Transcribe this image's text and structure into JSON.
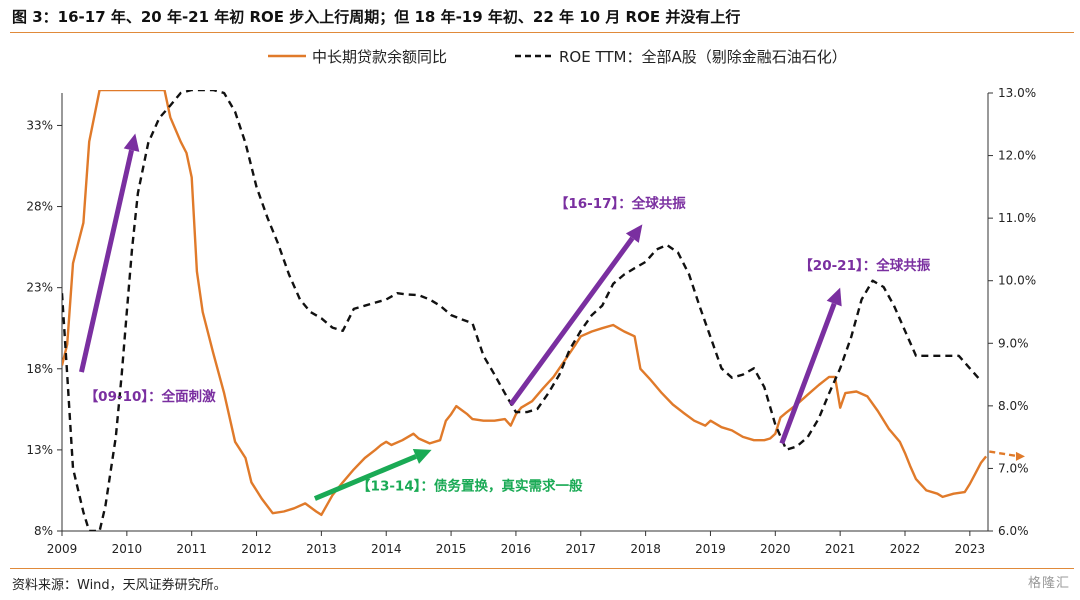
{
  "title": "图 3：16-17 年、20 年-21 年初  ROE 步入上行周期；但 18 年-19 年初、22 年 10 月 ROE 并没有上行",
  "source": "资料来源：Wind，天风证券研究所。",
  "watermark": "格隆汇",
  "chart_data": {
    "type": "line",
    "x_ticks": [
      "2009",
      "2010",
      "2011",
      "2012",
      "2013",
      "2014",
      "2015",
      "2016",
      "2017",
      "2018",
      "2019",
      "2020",
      "2021",
      "2022",
      "2023"
    ],
    "xlim": [
      2009.0,
      2023.28
    ],
    "y_left": {
      "ticks": [
        "8%",
        "13%",
        "18%",
        "23%",
        "28%",
        "33%"
      ],
      "ylim": [
        8,
        35
      ]
    },
    "y_right": {
      "ticks": [
        "6.0%",
        "7.0%",
        "8.0%",
        "9.0%",
        "10.0%",
        "11.0%",
        "12.0%",
        "13.0%"
      ],
      "ylim": [
        6.0,
        13.0
      ]
    },
    "series": [
      {
        "name": "中长期贷款余额同比",
        "axis": "left",
        "color": "#e07a2a",
        "style": "solid",
        "points": [
          [
            2009.0,
            18.2
          ],
          [
            2009.08,
            19.5
          ],
          [
            2009.17,
            24.5
          ],
          [
            2009.33,
            27.0
          ],
          [
            2009.42,
            32.0
          ],
          [
            2009.58,
            36.0
          ],
          [
            2010.58,
            36.0
          ],
          [
            2010.67,
            33.5
          ],
          [
            2010.83,
            32.0
          ],
          [
            2010.92,
            31.3
          ],
          [
            2011.0,
            29.8
          ],
          [
            2011.08,
            24.0
          ],
          [
            2011.17,
            21.5
          ],
          [
            2011.33,
            19.0
          ],
          [
            2011.5,
            16.5
          ],
          [
            2011.67,
            13.5
          ],
          [
            2011.83,
            12.5
          ],
          [
            2011.92,
            11.0
          ],
          [
            2012.08,
            10.0
          ],
          [
            2012.25,
            9.1
          ],
          [
            2012.42,
            9.2
          ],
          [
            2012.58,
            9.4
          ],
          [
            2012.75,
            9.7
          ],
          [
            2012.92,
            9.2
          ],
          [
            2013.0,
            9.0
          ],
          [
            2013.17,
            10.2
          ],
          [
            2013.33,
            11.0
          ],
          [
            2013.5,
            11.8
          ],
          [
            2013.67,
            12.5
          ],
          [
            2013.83,
            13.0
          ],
          [
            2013.92,
            13.3
          ],
          [
            2014.0,
            13.5
          ],
          [
            2014.08,
            13.3
          ],
          [
            2014.25,
            13.6
          ],
          [
            2014.42,
            14.0
          ],
          [
            2014.5,
            13.7
          ],
          [
            2014.67,
            13.4
          ],
          [
            2014.83,
            13.6
          ],
          [
            2014.92,
            14.8
          ],
          [
            2015.0,
            15.2
          ],
          [
            2015.08,
            15.7
          ],
          [
            2015.25,
            15.2
          ],
          [
            2015.33,
            14.9
          ],
          [
            2015.5,
            14.8
          ],
          [
            2015.67,
            14.8
          ],
          [
            2015.83,
            14.9
          ],
          [
            2015.92,
            14.5
          ],
          [
            2016.0,
            15.2
          ],
          [
            2016.08,
            15.6
          ],
          [
            2016.25,
            16.0
          ],
          [
            2016.42,
            16.8
          ],
          [
            2016.58,
            17.5
          ],
          [
            2016.75,
            18.5
          ],
          [
            2016.92,
            19.5
          ],
          [
            2017.0,
            20.0
          ],
          [
            2017.17,
            20.3
          ],
          [
            2017.33,
            20.5
          ],
          [
            2017.5,
            20.7
          ],
          [
            2017.58,
            20.5
          ],
          [
            2017.67,
            20.3
          ],
          [
            2017.83,
            20.0
          ],
          [
            2017.92,
            18.0
          ],
          [
            2018.08,
            17.3
          ],
          [
            2018.25,
            16.5
          ],
          [
            2018.42,
            15.8
          ],
          [
            2018.58,
            15.3
          ],
          [
            2018.75,
            14.8
          ],
          [
            2018.92,
            14.5
          ],
          [
            2019.0,
            14.8
          ],
          [
            2019.17,
            14.4
          ],
          [
            2019.33,
            14.2
          ],
          [
            2019.5,
            13.8
          ],
          [
            2019.67,
            13.6
          ],
          [
            2019.83,
            13.6
          ],
          [
            2019.92,
            13.7
          ],
          [
            2020.0,
            14.0
          ],
          [
            2020.08,
            15.0
          ],
          [
            2020.17,
            15.3
          ],
          [
            2020.33,
            15.8
          ],
          [
            2020.5,
            16.4
          ],
          [
            2020.67,
            17.0
          ],
          [
            2020.83,
            17.5
          ],
          [
            2020.92,
            17.5
          ],
          [
            2021.0,
            15.6
          ],
          [
            2021.08,
            16.5
          ],
          [
            2021.25,
            16.6
          ],
          [
            2021.42,
            16.3
          ],
          [
            2021.58,
            15.4
          ],
          [
            2021.75,
            14.3
          ],
          [
            2021.92,
            13.5
          ],
          [
            2022.0,
            12.8
          ],
          [
            2022.08,
            12.0
          ],
          [
            2022.17,
            11.2
          ],
          [
            2022.33,
            10.5
          ],
          [
            2022.5,
            10.3
          ],
          [
            2022.58,
            10.1
          ],
          [
            2022.75,
            10.3
          ],
          [
            2022.92,
            10.4
          ],
          [
            2023.0,
            10.9
          ],
          [
            2023.08,
            11.5
          ],
          [
            2023.17,
            12.2
          ],
          [
            2023.25,
            12.6
          ]
        ],
        "forecast": [
          [
            2023.3,
            12.9
          ],
          [
            2023.85,
            12.6
          ]
        ]
      },
      {
        "name": "ROE TTM：全部A股（剔除金融石油石化）",
        "axis": "right",
        "color": "#111111",
        "style": "dashed",
        "points": [
          [
            2009.0,
            9.8
          ],
          [
            2009.08,
            8.5
          ],
          [
            2009.17,
            7.0
          ],
          [
            2009.33,
            6.3
          ],
          [
            2009.42,
            5.9
          ],
          [
            2009.58,
            6.0
          ],
          [
            2009.67,
            6.4
          ],
          [
            2009.83,
            7.5
          ],
          [
            2009.92,
            8.5
          ],
          [
            2010.0,
            9.5
          ],
          [
            2010.08,
            10.5
          ],
          [
            2010.17,
            11.4
          ],
          [
            2010.33,
            12.2
          ],
          [
            2010.5,
            12.6
          ],
          [
            2010.67,
            12.8
          ],
          [
            2010.83,
            13.0
          ],
          [
            2011.0,
            13.2
          ],
          [
            2011.17,
            13.3
          ],
          [
            2011.33,
            13.2
          ],
          [
            2011.5,
            13.0
          ],
          [
            2011.67,
            12.7
          ],
          [
            2011.83,
            12.2
          ],
          [
            2012.0,
            11.5
          ],
          [
            2012.17,
            11.0
          ],
          [
            2012.33,
            10.6
          ],
          [
            2012.5,
            10.1
          ],
          [
            2012.67,
            9.7
          ],
          [
            2012.83,
            9.5
          ],
          [
            2013.0,
            9.4
          ],
          [
            2013.17,
            9.25
          ],
          [
            2013.33,
            9.2
          ],
          [
            2013.5,
            9.55
          ],
          [
            2013.67,
            9.6
          ],
          [
            2013.83,
            9.65
          ],
          [
            2014.0,
            9.7
          ],
          [
            2014.17,
            9.8
          ],
          [
            2014.33,
            9.78
          ],
          [
            2014.5,
            9.77
          ],
          [
            2014.67,
            9.7
          ],
          [
            2014.83,
            9.6
          ],
          [
            2015.0,
            9.45
          ],
          [
            2015.17,
            9.38
          ],
          [
            2015.33,
            9.32
          ],
          [
            2015.5,
            8.8
          ],
          [
            2015.67,
            8.5
          ],
          [
            2015.83,
            8.2
          ],
          [
            2016.0,
            7.9
          ],
          [
            2016.17,
            7.9
          ],
          [
            2016.33,
            7.95
          ],
          [
            2016.5,
            8.2
          ],
          [
            2016.67,
            8.5
          ],
          [
            2016.83,
            8.9
          ],
          [
            2017.0,
            9.2
          ],
          [
            2017.17,
            9.45
          ],
          [
            2017.33,
            9.6
          ],
          [
            2017.5,
            9.95
          ],
          [
            2017.67,
            10.1
          ],
          [
            2017.83,
            10.2
          ],
          [
            2018.0,
            10.3
          ],
          [
            2018.17,
            10.5
          ],
          [
            2018.33,
            10.57
          ],
          [
            2018.5,
            10.45
          ],
          [
            2018.67,
            10.1
          ],
          [
            2018.83,
            9.6
          ],
          [
            2019.0,
            9.1
          ],
          [
            2019.17,
            8.6
          ],
          [
            2019.33,
            8.45
          ],
          [
            2019.5,
            8.5
          ],
          [
            2019.67,
            8.6
          ],
          [
            2019.83,
            8.3
          ],
          [
            2020.0,
            7.7
          ],
          [
            2020.17,
            7.3
          ],
          [
            2020.33,
            7.35
          ],
          [
            2020.5,
            7.5
          ],
          [
            2020.67,
            7.8
          ],
          [
            2020.83,
            8.2
          ],
          [
            2021.0,
            8.6
          ],
          [
            2021.17,
            9.1
          ],
          [
            2021.33,
            9.7
          ],
          [
            2021.5,
            10.0
          ],
          [
            2021.67,
            9.9
          ],
          [
            2021.83,
            9.6
          ],
          [
            2022.0,
            9.2
          ],
          [
            2022.17,
            8.8
          ],
          [
            2022.33,
            8.8
          ],
          [
            2022.5,
            8.8
          ],
          [
            2022.67,
            8.8
          ],
          [
            2022.83,
            8.8
          ],
          [
            2023.0,
            8.6
          ],
          [
            2023.17,
            8.4
          ]
        ]
      }
    ],
    "annotations": [
      {
        "text": "【09-10】：全面刺激",
        "color": "#7a2fa0",
        "anchor": [
          2009.35,
          16.0
        ],
        "arrow": [
          [
            2009.3,
            17.8
          ],
          [
            2010.13,
            32.5
          ]
        ]
      },
      {
        "text": "【13-14】：债务置换，真实需求一般",
        "color": "#1aaa55",
        "anchor": [
          2013.55,
          10.5
        ],
        "arrow": [
          [
            2012.9,
            10.0
          ],
          [
            2014.7,
            13.0
          ]
        ]
      },
      {
        "text": "【16-17】：全球共振",
        "color": "#7a2fa0",
        "anchor": [
          2016.6,
          27.9
        ],
        "arrow": [
          [
            2015.92,
            15.8
          ],
          [
            2017.95,
            26.9
          ]
        ]
      },
      {
        "text": "【20-21】：全球共振",
        "color": "#7a2fa0",
        "anchor": [
          2020.37,
          24.1
        ],
        "arrow": [
          [
            2020.1,
            13.4
          ],
          [
            2021.0,
            23.0
          ]
        ]
      }
    ]
  }
}
